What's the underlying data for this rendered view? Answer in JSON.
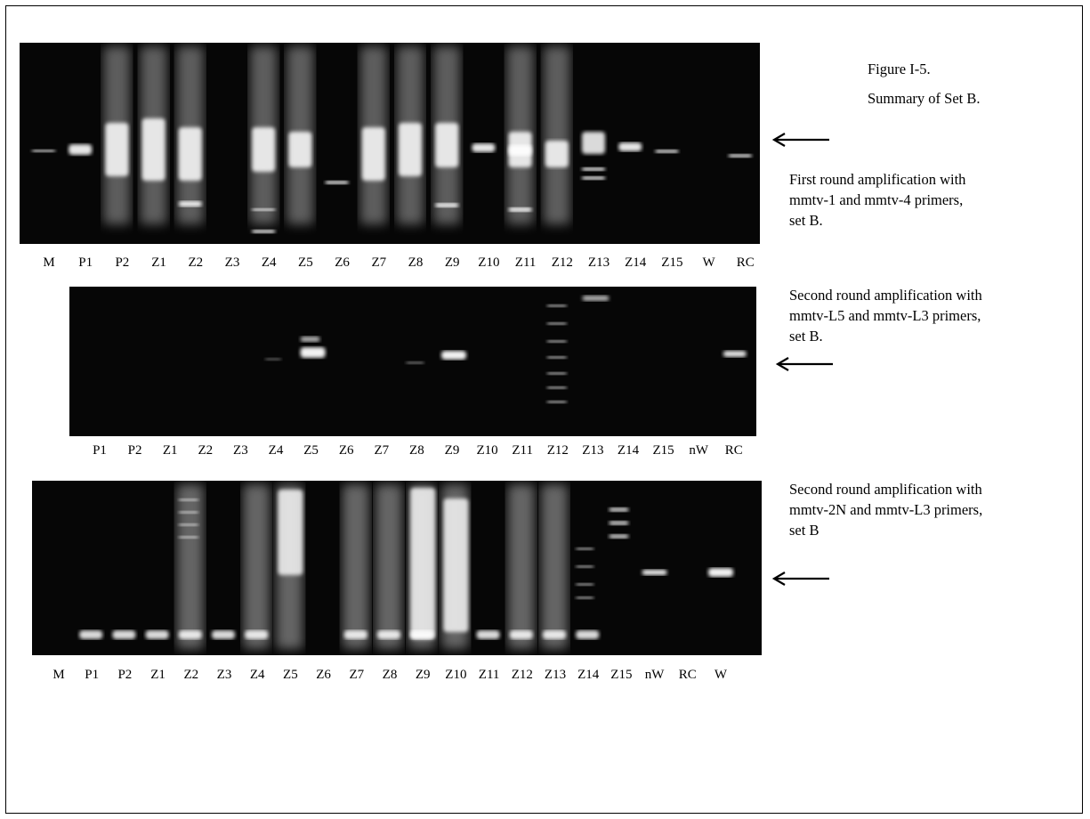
{
  "figure": {
    "label": "Figure I-5.",
    "title": "Summary of Set B."
  },
  "panels": [
    {
      "id": "first-round",
      "caption": [
        "First round amplification  with",
        "mmtv-1 and mmtv-4 primers,",
        "set B."
      ],
      "lanes": [
        "M",
        "P1",
        "P2",
        "Z1",
        "Z2",
        "Z3",
        "Z4",
        "Z5",
        "Z6",
        "Z7",
        "Z8",
        "Z9",
        "Z10",
        "Z11",
        "Z12",
        "Z13",
        "Z14",
        "Z15",
        "W",
        "RC"
      ]
    },
    {
      "id": "second-round-l5",
      "caption": [
        "Second round amplification  with",
        "mmtv-L5 and mmtv-L3 primers,",
        "set B."
      ],
      "lanes": [
        "P1",
        "P2",
        "Z1",
        "Z2",
        "Z3",
        "Z4",
        "Z5",
        "Z6",
        "Z7",
        "Z8",
        "Z9",
        "Z10",
        "Z11",
        "Z12",
        "Z13",
        "Z14",
        "Z15",
        "nW",
        "RC"
      ]
    },
    {
      "id": "second-round-2n",
      "caption": [
        "Second round amplification  with",
        "mmtv-2N and mmtv-L3 primers,",
        "set B"
      ],
      "lanes": [
        "M",
        "P1",
        "P2",
        "Z1",
        "Z2",
        "Z3",
        "Z4",
        "Z5",
        "Z6",
        "Z7",
        "Z8",
        "Z9",
        "Z10",
        "Z11",
        "Z12",
        "Z13",
        "Z14",
        "Z15",
        "nW",
        "RC",
        "W"
      ]
    }
  ]
}
